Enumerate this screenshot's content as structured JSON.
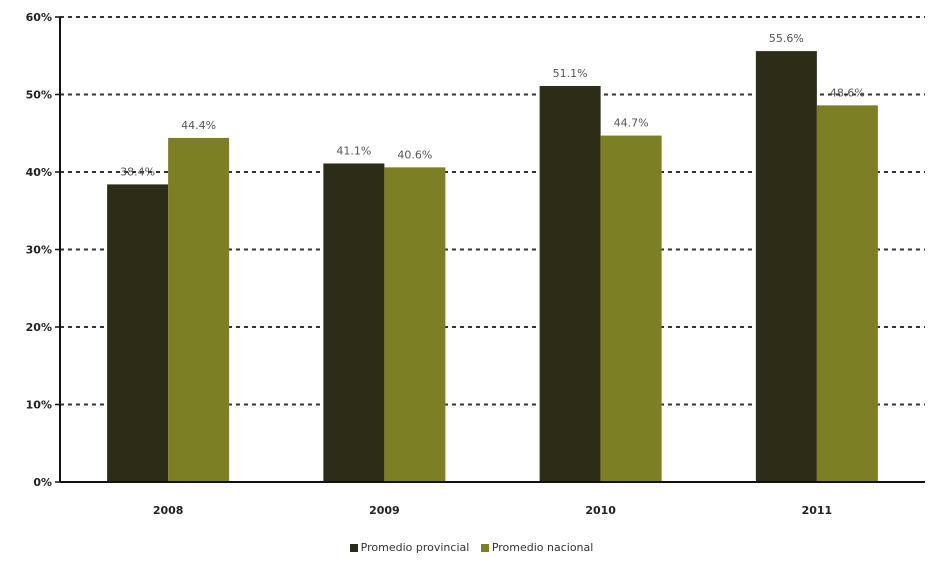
{
  "chart_data": {
    "type": "bar",
    "categories": [
      "2008",
      "2009",
      "2010",
      "2011"
    ],
    "series": [
      {
        "name": "Promedio provincial",
        "values": [
          38.4,
          41.1,
          51.1,
          55.6
        ],
        "labels": [
          "38.4%",
          "41.1%",
          "51.1%",
          "55.6%"
        ],
        "color": "#2d2d17"
      },
      {
        "name": "Promedio nacional",
        "values": [
          44.4,
          40.6,
          44.7,
          48.6
        ],
        "labels": [
          "44.4%",
          "40.6%",
          "44.7%",
          "48.6%"
        ],
        "color": "#7d7f24"
      }
    ],
    "ylim": [
      0,
      60
    ],
    "yticks": [
      0,
      10,
      20,
      30,
      40,
      50,
      60
    ],
    "ytick_labels": [
      "0%",
      "10%",
      "20%",
      "30%",
      "40%",
      "50%",
      "60%"
    ],
    "grid": "dotted horizontal",
    "legend": "bottom-center",
    "title": "",
    "xlabel": "",
    "ylabel": ""
  }
}
